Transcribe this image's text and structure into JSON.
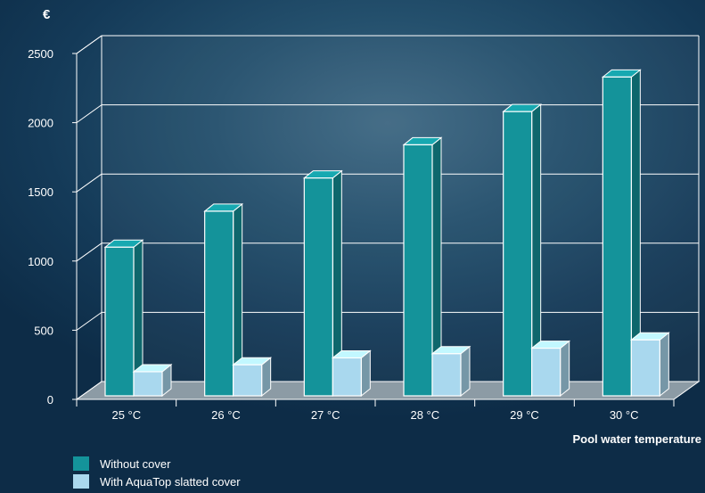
{
  "chart_data": {
    "type": "bar",
    "unit_label": "€",
    "xlabel": "Pool water temperature",
    "ylabel": "",
    "categories": [
      "25 °C",
      "26 °C",
      "27 °C",
      "28 °C",
      "29 °C",
      "30 °C"
    ],
    "series": [
      {
        "name": "Without cover",
        "values": [
          1100,
          1360,
          1600,
          1840,
          2080,
          2330
        ],
        "color": "#14939a"
      },
      {
        "name": "With AquaTop slatted cover",
        "values": [
          200,
          250,
          300,
          330,
          370,
          430
        ],
        "color": "#a9d8ee"
      }
    ],
    "yticks": [
      0,
      500,
      1000,
      1500,
      2000,
      2500
    ],
    "ylim": [
      0,
      2500
    ],
    "grid": true,
    "legend_position": "bottom-left"
  }
}
